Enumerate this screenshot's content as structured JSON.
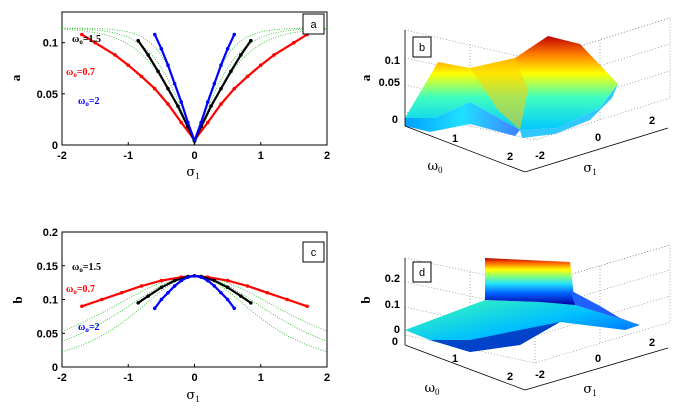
{
  "colors": {
    "w15": "#000000",
    "w07": "#ff0000",
    "w2": "#0000ff",
    "sech": "#22bb22"
  },
  "chart_data": [
    {
      "type": "line",
      "panel_label": "a",
      "ylabel": "a",
      "xlabel": "σ1",
      "xlim": [
        -2,
        2
      ],
      "ylim": [
        0,
        0.13
      ],
      "xticks": [
        "-2",
        "-1",
        "0",
        "1",
        "2"
      ],
      "yticks": [
        "0",
        "0.05",
        "0.1"
      ],
      "annotations": [
        {
          "text": "ω0=1.5",
          "series": "w15"
        },
        {
          "text": "ω0=0.7",
          "series": "w07"
        },
        {
          "text": "ω0=2",
          "series": "w2"
        }
      ],
      "series": [
        {
          "key": "w07",
          "x": [
            -1.7,
            -1.5,
            -1.2,
            -1.0,
            -0.8,
            -0.6,
            -0.4,
            -0.2,
            0,
            0.2,
            0.4,
            0.6,
            0.8,
            1.0,
            1.2,
            1.5,
            1.7
          ],
          "y": [
            0.108,
            0.1,
            0.088,
            0.078,
            0.067,
            0.055,
            0.04,
            0.022,
            0.005,
            0.022,
            0.04,
            0.055,
            0.067,
            0.078,
            0.088,
            0.1,
            0.108
          ]
        },
        {
          "key": "w15",
          "x": [
            -0.85,
            -0.7,
            -0.55,
            -0.4,
            -0.25,
            -0.1,
            0,
            0.1,
            0.25,
            0.4,
            0.55,
            0.7,
            0.85
          ],
          "y": [
            0.102,
            0.088,
            0.072,
            0.055,
            0.038,
            0.018,
            0.004,
            0.018,
            0.038,
            0.055,
            0.072,
            0.088,
            0.102
          ]
        },
        {
          "key": "w2",
          "x": [
            -0.6,
            -0.5,
            -0.4,
            -0.3,
            -0.2,
            -0.1,
            0,
            0.1,
            0.2,
            0.3,
            0.4,
            0.5,
            0.6
          ],
          "y": [
            0.108,
            0.094,
            0.078,
            0.06,
            0.042,
            0.022,
            0.004,
            0.022,
            0.042,
            0.06,
            0.078,
            0.094,
            0.108
          ]
        }
      ]
    },
    {
      "type": "surface",
      "panel_label": "b",
      "zlabel": "a",
      "xlabel": "σ1",
      "ylabel": "ω0",
      "xticks": [
        "-2",
        "0",
        "2"
      ],
      "yticks": [
        "0",
        "1",
        "2"
      ],
      "zticks": [
        "0.05",
        "0.1"
      ]
    },
    {
      "type": "line",
      "panel_label": "c",
      "ylabel": "b",
      "xlabel": "σ1",
      "xlim": [
        -2,
        2
      ],
      "ylim": [
        0,
        0.2
      ],
      "xticks": [
        "-2",
        "-1",
        "0",
        "1",
        "2"
      ],
      "yticks": [
        "0",
        "0.05",
        "0.1",
        "0.15",
        "0.2"
      ],
      "annotations": [
        {
          "text": "ω0=1.5",
          "series": "w15"
        },
        {
          "text": "ω0=0.7",
          "series": "w07"
        },
        {
          "text": "ω0=2",
          "series": "w2"
        }
      ],
      "series": [
        {
          "key": "w07",
          "x": [
            -1.7,
            -1.4,
            -1.1,
            -0.8,
            -0.5,
            -0.2,
            0,
            0.2,
            0.5,
            0.8,
            1.1,
            1.4,
            1.7
          ],
          "y": [
            0.09,
            0.1,
            0.11,
            0.12,
            0.128,
            0.133,
            0.135,
            0.133,
            0.128,
            0.12,
            0.11,
            0.1,
            0.09
          ]
        },
        {
          "key": "w15",
          "x": [
            -0.85,
            -0.7,
            -0.5,
            -0.3,
            -0.1,
            0,
            0.1,
            0.3,
            0.5,
            0.7,
            0.85
          ],
          "y": [
            0.095,
            0.105,
            0.118,
            0.128,
            0.134,
            0.135,
            0.134,
            0.128,
            0.118,
            0.105,
            0.095
          ]
        },
        {
          "key": "w2",
          "x": [
            -0.6,
            -0.5,
            -0.4,
            -0.3,
            -0.2,
            -0.1,
            0,
            0.1,
            0.2,
            0.3,
            0.4,
            0.5,
            0.6
          ],
          "y": [
            0.087,
            0.1,
            0.11,
            0.12,
            0.128,
            0.133,
            0.135,
            0.133,
            0.128,
            0.12,
            0.11,
            0.1,
            0.087
          ]
        }
      ]
    },
    {
      "type": "surface",
      "panel_label": "d",
      "zlabel": "b",
      "xlabel": "σ1",
      "ylabel": "ω0",
      "xticks": [
        "-2",
        "0",
        "2"
      ],
      "yticks": [
        "0",
        "1",
        "2"
      ],
      "zticks": [
        "0",
        "0.1",
        "0.2"
      ]
    }
  ]
}
